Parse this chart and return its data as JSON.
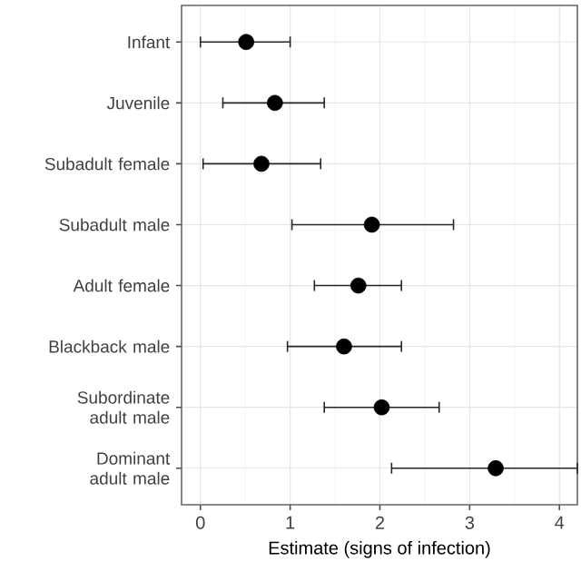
{
  "chart_data": {
    "type": "scatter",
    "orientation": "horizontal",
    "xlabel": "Estimate (signs of infection)",
    "categories": [
      "Infant",
      "Juvenile",
      "Subadult female",
      "Subadult male",
      "Adult female",
      "Blackback male",
      "Subordinate adult male",
      "Dominant adult male"
    ],
    "values": [
      0.51,
      0.83,
      0.68,
      1.91,
      1.76,
      1.6,
      2.02,
      3.29
    ],
    "errors": [
      [
        0.0,
        1.0
      ],
      [
        0.25,
        1.38
      ],
      [
        0.03,
        1.34
      ],
      [
        1.02,
        2.82
      ],
      [
        1.27,
        2.24
      ],
      [
        0.97,
        2.24
      ],
      [
        1.38,
        2.66
      ],
      [
        2.13,
        4.2
      ]
    ],
    "color": "#000000",
    "xlim": [
      -0.21,
      4.2
    ],
    "xticks": [
      0,
      1,
      2,
      3,
      4
    ],
    "grid": true
  }
}
